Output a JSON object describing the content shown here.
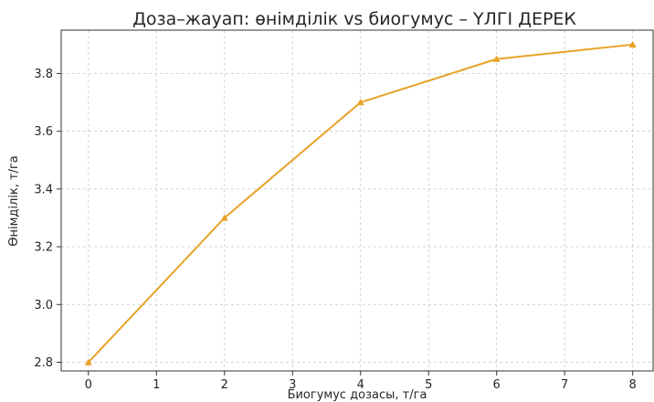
{
  "chart_data": {
    "type": "line",
    "title": "Доза–жауап: өнімділік vs биогумус – ҮЛГІ ДЕРЕК",
    "xlabel": "Биогумус дозасы, т/га",
    "ylabel": "Өнімділік, т/га",
    "xlim": [
      -0.4,
      8.3
    ],
    "ylim": [
      2.77,
      3.95
    ],
    "xticks": [
      0,
      1,
      2,
      3,
      4,
      5,
      6,
      7,
      8
    ],
    "yticks": [
      2.8,
      3.0,
      3.2,
      3.4,
      3.6,
      3.8
    ],
    "grid": true,
    "series": [
      {
        "color": "#E8A227",
        "marker": "triangle",
        "x": [
          0,
          2,
          4,
          6,
          8
        ],
        "y": [
          2.8,
          3.3,
          3.7,
          3.85,
          3.9
        ]
      }
    ]
  }
}
